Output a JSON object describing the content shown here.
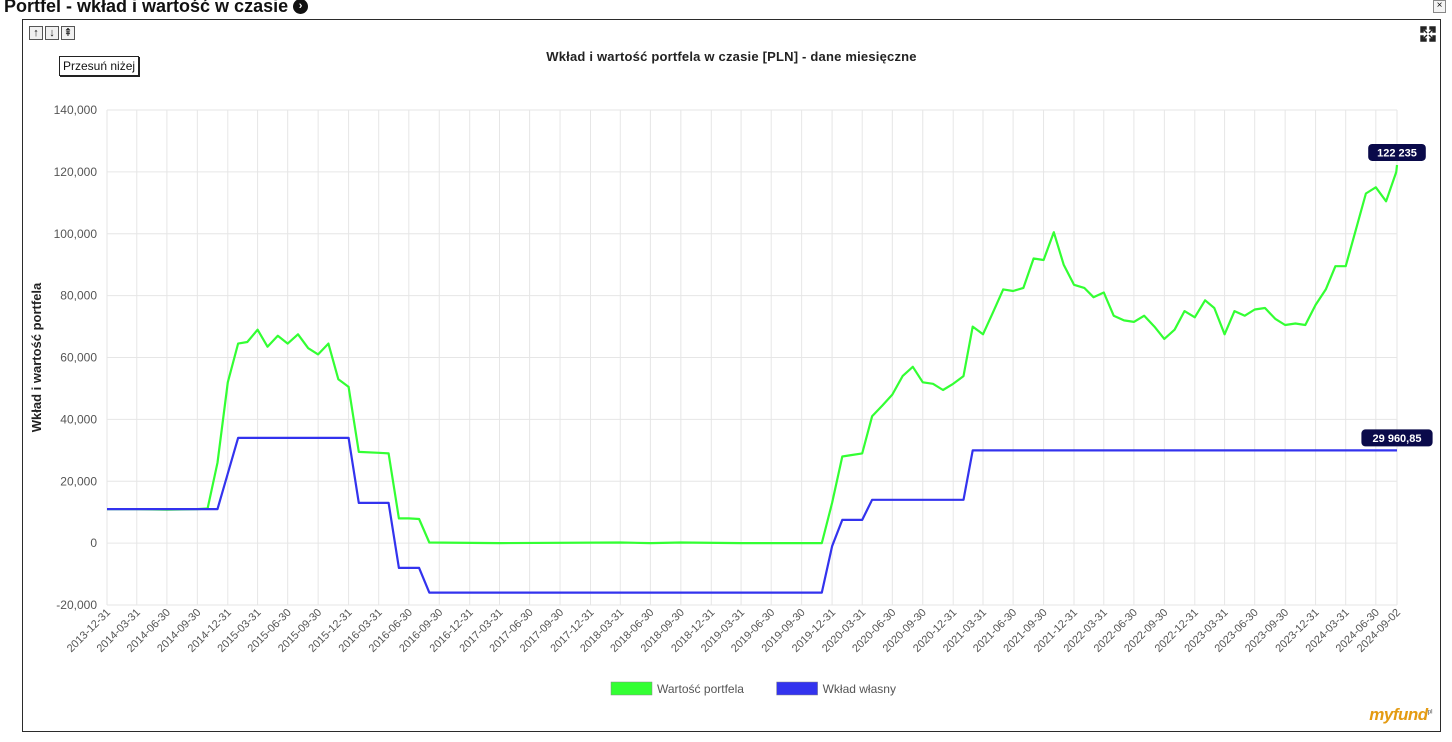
{
  "page": {
    "title": "Portfel - wkład i wartość w czasie",
    "title_icon": "circle-arrow-right-icon",
    "close_label": "×"
  },
  "controls": {
    "nav_up_label": "↑",
    "nav_down_label": "↓",
    "nav_top_label": "⇞",
    "move_down_label": "Przesuń niżej",
    "fullscreen_icon": "expand-icon"
  },
  "brand": {
    "logo": "myfund",
    "logo_suffix": "pl"
  },
  "colors": {
    "value_series": "#33ff33",
    "contribution_series": "#3333ee",
    "badge": "#0a0a4a",
    "grid": "#e6e6e6"
  },
  "chart_data": {
    "type": "line",
    "title": "Wkład i wartość portfela w czasie [PLN] - dane miesięczne",
    "xlabel": "",
    "ylabel": "Wkład i wartość portfela",
    "ylim": [
      -20000,
      140000
    ],
    "y_ticks": [
      "140,000",
      "120,000",
      "100,000",
      "80,000",
      "60,000",
      "40,000",
      "20,000",
      "0",
      "-20,000"
    ],
    "y_tick_values": [
      140000,
      120000,
      100000,
      80000,
      60000,
      40000,
      20000,
      0,
      -20000
    ],
    "x_start": "2013-12-31",
    "x_end": "2024-09-02",
    "x_ticks": [
      "2013-12-31",
      "2014-03-31",
      "2014-06-30",
      "2014-09-30",
      "2014-12-31",
      "2015-03-31",
      "2015-06-30",
      "2015-09-30",
      "2015-12-31",
      "2016-03-31",
      "2016-06-30",
      "2016-09-30",
      "2016-12-31",
      "2017-03-31",
      "2017-06-30",
      "2017-09-30",
      "2017-12-31",
      "2018-03-31",
      "2018-06-30",
      "2018-09-30",
      "2018-12-31",
      "2019-03-31",
      "2019-06-30",
      "2019-09-30",
      "2019-12-31",
      "2020-03-31",
      "2020-06-30",
      "2020-09-30",
      "2020-12-31",
      "2021-03-31",
      "2021-06-30",
      "2021-09-30",
      "2021-12-31",
      "2022-03-31",
      "2022-06-30",
      "2022-09-30",
      "2022-12-31",
      "2023-03-31",
      "2023-06-30",
      "2023-09-30",
      "2023-12-31",
      "2024-03-31",
      "2024-06-30",
      "2024-09-02"
    ],
    "grid": true,
    "legend_position": "bottom-center",
    "series": [
      {
        "name": "Wartość portfela",
        "end_label": "122 235",
        "points": [
          [
            "2013-12-31",
            11000
          ],
          [
            "2014-03-31",
            11000
          ],
          [
            "2014-06-30",
            10800
          ],
          [
            "2014-09-30",
            11000
          ],
          [
            "2014-10-31",
            11200
          ],
          [
            "2014-11-30",
            26000
          ],
          [
            "2014-12-31",
            52000
          ],
          [
            "2015-01-31",
            64500
          ],
          [
            "2015-02-28",
            65000
          ],
          [
            "2015-03-31",
            69000
          ],
          [
            "2015-04-30",
            63500
          ],
          [
            "2015-05-31",
            67000
          ],
          [
            "2015-06-30",
            64500
          ],
          [
            "2015-07-31",
            67500
          ],
          [
            "2015-08-31",
            63000
          ],
          [
            "2015-09-30",
            61000
          ],
          [
            "2015-10-31",
            64500
          ],
          [
            "2015-11-30",
            53000
          ],
          [
            "2015-12-31",
            50500
          ],
          [
            "2016-01-31",
            29500
          ],
          [
            "2016-03-31",
            29200
          ],
          [
            "2016-04-30",
            29000
          ],
          [
            "2016-05-31",
            8000
          ],
          [
            "2016-06-30",
            8000
          ],
          [
            "2016-07-31",
            7800
          ],
          [
            "2016-08-31",
            200
          ],
          [
            "2017-03-31",
            0
          ],
          [
            "2018-03-31",
            200
          ],
          [
            "2018-06-30",
            0
          ],
          [
            "2018-09-30",
            200
          ],
          [
            "2019-03-31",
            0
          ],
          [
            "2019-09-30",
            0
          ],
          [
            "2019-11-30",
            0
          ],
          [
            "2019-12-31",
            13000
          ],
          [
            "2020-01-31",
            28000
          ],
          [
            "2020-02-29",
            28500
          ],
          [
            "2020-03-31",
            29000
          ],
          [
            "2020-04-30",
            41000
          ],
          [
            "2020-05-31",
            44500
          ],
          [
            "2020-06-30",
            48000
          ],
          [
            "2020-07-31",
            54000
          ],
          [
            "2020-08-31",
            57000
          ],
          [
            "2020-09-30",
            52000
          ],
          [
            "2020-10-31",
            51500
          ],
          [
            "2020-11-30",
            49500
          ],
          [
            "2020-12-31",
            51500
          ],
          [
            "2021-01-31",
            54000
          ],
          [
            "2021-02-28",
            70000
          ],
          [
            "2021-03-31",
            67500
          ],
          [
            "2021-04-30",
            74500
          ],
          [
            "2021-05-31",
            82000
          ],
          [
            "2021-06-30",
            81500
          ],
          [
            "2021-07-31",
            82500
          ],
          [
            "2021-08-31",
            92000
          ],
          [
            "2021-09-30",
            91500
          ],
          [
            "2021-10-31",
            100500
          ],
          [
            "2021-11-30",
            90000
          ],
          [
            "2021-12-31",
            83500
          ],
          [
            "2022-01-31",
            82500
          ],
          [
            "2022-02-28",
            79500
          ],
          [
            "2022-03-31",
            81000
          ],
          [
            "2022-04-30",
            73500
          ],
          [
            "2022-05-31",
            72000
          ],
          [
            "2022-06-30",
            71500
          ],
          [
            "2022-07-31",
            73500
          ],
          [
            "2022-08-31",
            70000
          ],
          [
            "2022-09-30",
            66000
          ],
          [
            "2022-10-31",
            69000
          ],
          [
            "2022-11-30",
            75000
          ],
          [
            "2022-12-31",
            73000
          ],
          [
            "2023-01-31",
            78500
          ],
          [
            "2023-02-28",
            76000
          ],
          [
            "2023-03-31",
            67500
          ],
          [
            "2023-04-30",
            75000
          ],
          [
            "2023-05-31",
            73500
          ],
          [
            "2023-06-30",
            75500
          ],
          [
            "2023-07-31",
            76000
          ],
          [
            "2023-08-31",
            72500
          ],
          [
            "2023-09-30",
            70500
          ],
          [
            "2023-10-31",
            71000
          ],
          [
            "2023-11-30",
            70500
          ],
          [
            "2023-12-31",
            77000
          ],
          [
            "2024-01-31",
            82000
          ],
          [
            "2024-02-29",
            89500
          ],
          [
            "2024-03-31",
            89500
          ],
          [
            "2024-04-30",
            101000
          ],
          [
            "2024-05-31",
            113000
          ],
          [
            "2024-06-30",
            115000
          ],
          [
            "2024-07-31",
            110500
          ],
          [
            "2024-08-31",
            120000
          ],
          [
            "2024-09-02",
            122235
          ]
        ]
      },
      {
        "name": "Wkład własny",
        "end_label": "29 960,85",
        "points": [
          [
            "2013-12-31",
            11000
          ],
          [
            "2014-10-31",
            11000
          ],
          [
            "2014-11-30",
            11000
          ],
          [
            "2014-12-31",
            22500
          ],
          [
            "2015-01-31",
            34000
          ],
          [
            "2015-12-31",
            34000
          ],
          [
            "2016-01-31",
            13000
          ],
          [
            "2016-04-30",
            13000
          ],
          [
            "2016-05-31",
            -8000
          ],
          [
            "2016-07-31",
            -8000
          ],
          [
            "2016-08-31",
            -16000
          ],
          [
            "2019-11-30",
            -16000
          ],
          [
            "2019-12-31",
            -1000
          ],
          [
            "2020-01-31",
            7500
          ],
          [
            "2020-03-31",
            7500
          ],
          [
            "2020-04-30",
            14000
          ],
          [
            "2020-12-31",
            14000
          ],
          [
            "2021-01-31",
            14000
          ],
          [
            "2021-02-28",
            29960.85
          ],
          [
            "2024-09-02",
            29960.85
          ]
        ]
      }
    ]
  }
}
